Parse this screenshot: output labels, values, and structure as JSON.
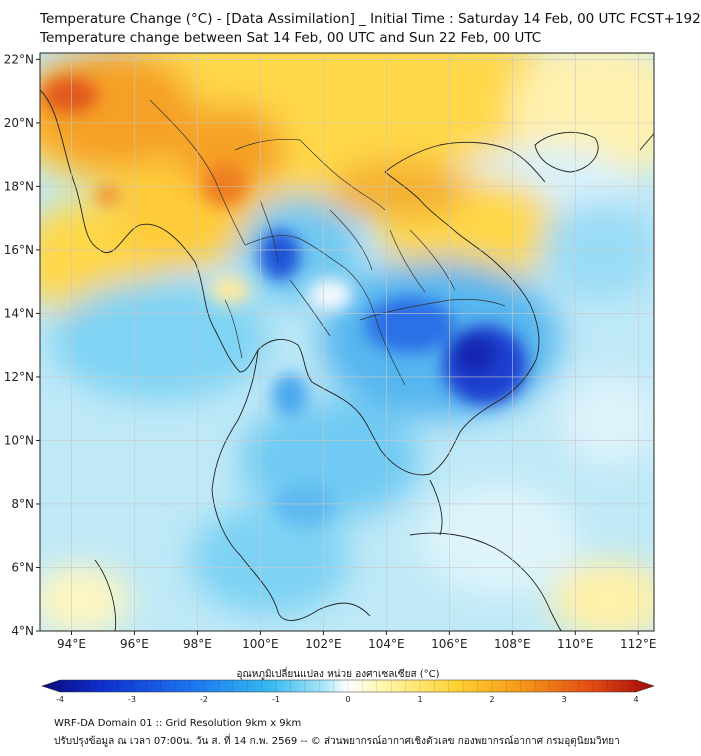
{
  "title": {
    "line1": "Temperature Change (°C) - [Data Assimilation] _ Initial Time : Saturday 14 Feb, 00 UTC FCST+192",
    "line2": "Temperature change between Sat 14 Feb, 00 UTC and Sun 22 Feb, 00 UTC"
  },
  "map": {
    "lon_ticks": [
      "94°E",
      "96°E",
      "98°E",
      "100°E",
      "102°E",
      "104°E",
      "106°E",
      "108°E",
      "110°E",
      "112°E"
    ],
    "lat_ticks": [
      "22°N",
      "20°N",
      "18°N",
      "16°N",
      "14°N",
      "12°N",
      "10°N",
      "8°N",
      "6°N",
      "4°N"
    ],
    "lon_range": [
      93,
      112.5
    ],
    "lat_range": [
      4,
      22.2
    ]
  },
  "colorbar": {
    "title": "อุณหภูมิเปลี่ยนแปลง หน่วย องศาเซลเซียส (°C)",
    "ticks": [
      "-4",
      "-3",
      "-2",
      "-1",
      "0",
      "1",
      "2",
      "3",
      "4"
    ],
    "range": [
      -4,
      4
    ],
    "colors": [
      "#0a0a7a",
      "#0f2fd0",
      "#1e78f0",
      "#33b8f0",
      "#a8e6f8",
      "#ffffff",
      "#fff6a8",
      "#ffd030",
      "#f59a18",
      "#e24a12",
      "#a0080a"
    ]
  },
  "footer": {
    "line1": "WRF-DA Domain 01 :: Grid Resolution 9km x 9km",
    "line2": "ปรับปรุงข้อมูล ณ เวลา 07:00น. วัน ส. ที่ 14 ก.พ. 2569 -- © ส่วนพยากรณ์อากาศเชิงตัวเลข กองพยากรณ์อากาศ กรมอุตุนิยมวิทยา"
  }
}
